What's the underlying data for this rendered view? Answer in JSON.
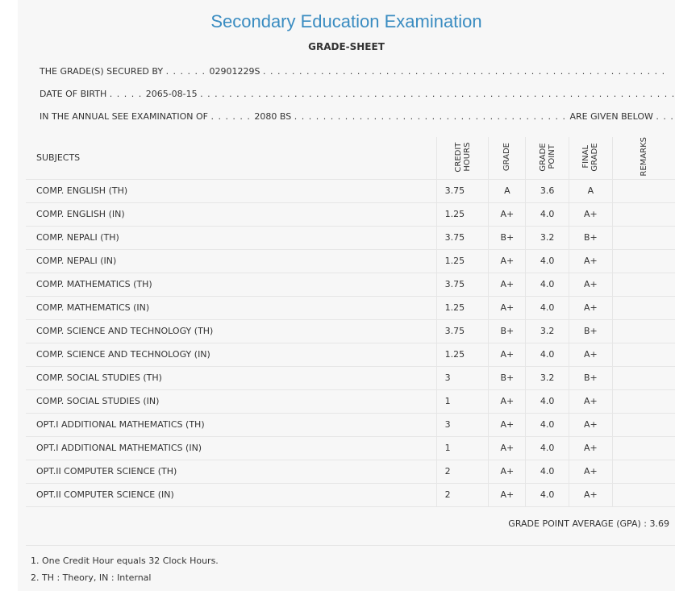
{
  "title": "Secondary Education Examination",
  "subtitle": "GRADE-SHEET",
  "info": {
    "secured_by_label": "THE GRADE(S) SECURED BY",
    "symbol_no": "02901229S",
    "dob_label": "DATE OF BIRTH",
    "dob": "2065-08-15",
    "exam_label": "IN THE ANNUAL SEE EXAMINATION OF",
    "exam_year": "2080 BS",
    "given_below": "ARE GIVEN BELOW"
  },
  "table": {
    "headers": {
      "subjects": "SUBJECTS",
      "credit_hours": "CREDIT HOURS",
      "grade": "GRADE",
      "grade_point": "GRADE POINT",
      "final_grade": "FINAL GRADE",
      "remarks": "REMARKS"
    },
    "rows": [
      {
        "subject": "COMP. ENGLISH (TH)",
        "credit": "3.75",
        "grade": "A",
        "point": "3.6",
        "final": "A"
      },
      {
        "subject": "COMP. ENGLISH (IN)",
        "credit": "1.25",
        "grade": "A+",
        "point": "4.0",
        "final": "A+"
      },
      {
        "subject": "COMP. NEPALI (TH)",
        "credit": "3.75",
        "grade": "B+",
        "point": "3.2",
        "final": "B+"
      },
      {
        "subject": "COMP. NEPALI (IN)",
        "credit": "1.25",
        "grade": "A+",
        "point": "4.0",
        "final": "A+"
      },
      {
        "subject": "COMP. MATHEMATICS (TH)",
        "credit": "3.75",
        "grade": "A+",
        "point": "4.0",
        "final": "A+"
      },
      {
        "subject": "COMP. MATHEMATICS (IN)",
        "credit": "1.25",
        "grade": "A+",
        "point": "4.0",
        "final": "A+"
      },
      {
        "subject": "COMP. SCIENCE AND TECHNOLOGY (TH)",
        "credit": "3.75",
        "grade": "B+",
        "point": "3.2",
        "final": "B+"
      },
      {
        "subject": "COMP. SCIENCE AND TECHNOLOGY (IN)",
        "credit": "1.25",
        "grade": "A+",
        "point": "4.0",
        "final": "A+"
      },
      {
        "subject": "COMP. SOCIAL STUDIES (TH)",
        "credit": "3",
        "grade": "B+",
        "point": "3.2",
        "final": "B+"
      },
      {
        "subject": "COMP. SOCIAL STUDIES (IN)",
        "credit": "1",
        "grade": "A+",
        "point": "4.0",
        "final": "A+"
      },
      {
        "subject": "OPT.I ADDITIONAL MATHEMATICS (TH)",
        "credit": "3",
        "grade": "A+",
        "point": "4.0",
        "final": "A+"
      },
      {
        "subject": "OPT.I ADDITIONAL MATHEMATICS (IN)",
        "credit": "1",
        "grade": "A+",
        "point": "4.0",
        "final": "A+"
      },
      {
        "subject": "OPT.II COMPUTER SCIENCE (TH)",
        "credit": "2",
        "grade": "A+",
        "point": "4.0",
        "final": "A+"
      },
      {
        "subject": "OPT.II COMPUTER SCIENCE (IN)",
        "credit": "2",
        "grade": "A+",
        "point": "4.0",
        "final": "A+"
      }
    ]
  },
  "gpa": "GRADE POINT AVERAGE (GPA) : 3.69",
  "notes": [
    "1. One Credit Hour equals 32 Clock Hours.",
    "2. TH : Theory, IN : Internal"
  ],
  "colors": {
    "title": "#3a8cc1",
    "background": "#f7f7f7"
  }
}
